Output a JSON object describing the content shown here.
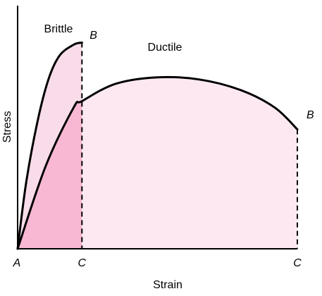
{
  "chart_data": {
    "type": "line",
    "title": "",
    "xlabel": "Strain",
    "ylabel": "Stress",
    "xlim": [
      0,
      10
    ],
    "ylim": [
      0,
      10
    ],
    "axis_ticks_visible": false,
    "grid": false,
    "series": [
      {
        "name": "Brittle",
        "x": [
          0,
          0.3,
          0.7,
          1.1,
          1.5,
          2.0,
          2.3
        ],
        "y": [
          0,
          3.0,
          5.8,
          7.8,
          8.9,
          9.4,
          9.5
        ],
        "fill": "#f9dcea"
      },
      {
        "name": "Ductile",
        "x": [
          0,
          1.0,
          2.0,
          2.3,
          3.5,
          5.0,
          6.5,
          8.0,
          9.2,
          10.0
        ],
        "y": [
          0,
          3.8,
          6.5,
          6.8,
          7.6,
          7.9,
          7.8,
          7.3,
          6.5,
          5.5
        ],
        "fill": "#fde8f2"
      }
    ],
    "overlap_fill": "#f8b8d3",
    "annotations": [
      {
        "text": "A",
        "x": 0,
        "y": 0
      },
      {
        "text": "C",
        "x": 2.3,
        "y": 0
      },
      {
        "text": "C",
        "x": 10.0,
        "y": 0
      },
      {
        "text": "B",
        "x": 2.3,
        "y": 9.5
      },
      {
        "text": "B",
        "x": 10.0,
        "y": 5.5
      }
    ],
    "dropline_color": "#000000",
    "curve_color": "#000000"
  }
}
